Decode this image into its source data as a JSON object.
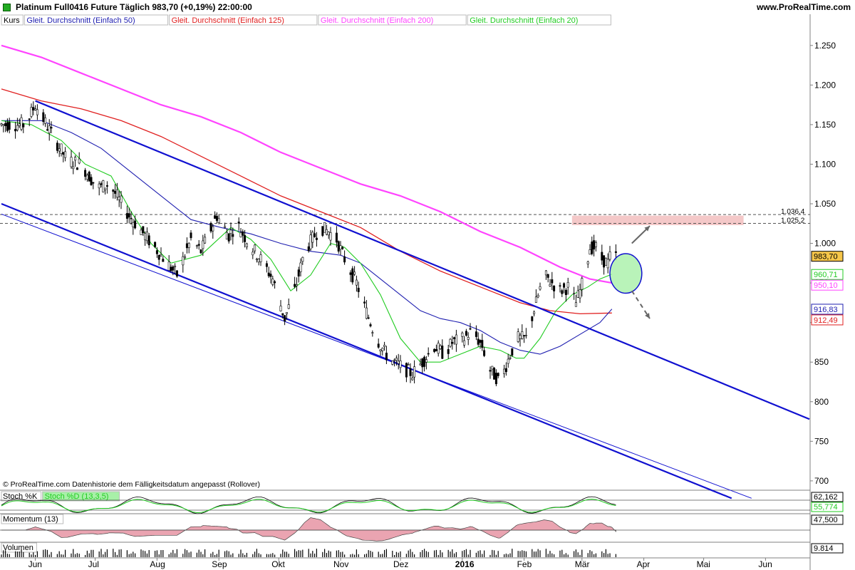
{
  "header": {
    "title": "Platinum Full0416 Future   Täglich   983,70  (+0,19%)   22:00:00",
    "brand": "www.ProRealTime.com"
  },
  "legend": [
    {
      "label": "Kurs",
      "color": "#000000",
      "bg": "#ffffff"
    },
    {
      "label": "Gleit. Durchschnitt (Einfach 50)",
      "color": "#1f1fb0",
      "bg": "#ffffff"
    },
    {
      "label": "Gleit. Durchschnitt (Einfach 125)",
      "color": "#e02020",
      "bg": "#ffffff"
    },
    {
      "label": "Gleit. Durchschnitt (Einfach 200)",
      "color": "#ff44ff",
      "bg": "#ffffff"
    },
    {
      "label": "Gleit. Durchschnitt (Einfach 20)",
      "color": "#22cc22",
      "bg": "#ffffff"
    }
  ],
  "footnote": "© ProRealTime.com  Datenhistorie dem Fälligkeitsdatum angepasst (Rollover)",
  "colors": {
    "ma50": "#1f1fb0",
    "ma125": "#e02020",
    "ma200": "#ff44ff",
    "ma20": "#22cc22",
    "trend": "#1010d0",
    "zone": "#f4c8c8",
    "ellipse_fill": "#a8f0a8",
    "arrow": "#666666"
  },
  "chart_data": {
    "type": "candlestick",
    "ylim": [
      690,
      1275
    ],
    "yticks": [
      700,
      750,
      800,
      850,
      900,
      950,
      1000,
      1050,
      1100,
      1150,
      1200,
      1250
    ],
    "ytick_labels": [
      "700",
      "750",
      "800",
      "850",
      "900",
      "950",
      "1.000",
      "1.050",
      "1.100",
      "1.150",
      "1.200",
      "1.250"
    ],
    "x_months": [
      {
        "label": "Jun",
        "day": 17
      },
      {
        "label": "Jul",
        "day": 47
      },
      {
        "label": "Aug",
        "day": 78
      },
      {
        "label": "Sep",
        "day": 109
      },
      {
        "label": "Okt",
        "day": 139
      },
      {
        "label": "Nov",
        "day": 170
      },
      {
        "label": "Dez",
        "day": 200
      },
      {
        "label": "2016",
        "day": 231,
        "bold": true
      },
      {
        "label": "Feb",
        "day": 262
      },
      {
        "label": "Mär",
        "day": 291
      },
      {
        "label": "Apr",
        "day": 322
      },
      {
        "label": "Mai",
        "day": 352
      },
      {
        "label": "Jun",
        "day": 383
      }
    ],
    "days_visible": [
      0,
      405
    ],
    "last_day": 308,
    "price_path": [
      [
        0,
        1150
      ],
      [
        12,
        1150
      ],
      [
        17,
        1175
      ],
      [
        27,
        1130
      ],
      [
        33,
        1105
      ],
      [
        40,
        1100
      ],
      [
        48,
        1070
      ],
      [
        54,
        1075
      ],
      [
        64,
        1035
      ],
      [
        72,
        1010
      ],
      [
        80,
        985
      ],
      [
        88,
        960
      ],
      [
        95,
        1005
      ],
      [
        100,
        990
      ],
      [
        108,
        1035
      ],
      [
        114,
        1010
      ],
      [
        118,
        1025
      ],
      [
        124,
        1000
      ],
      [
        130,
        980
      ],
      [
        136,
        955
      ],
      [
        142,
        905
      ],
      [
        147,
        940
      ],
      [
        152,
        990
      ],
      [
        157,
        1010
      ],
      [
        160,
        1020
      ],
      [
        164,
        1015
      ],
      [
        168,
        1005
      ],
      [
        172,
        980
      ],
      [
        178,
        950
      ],
      [
        182,
        920
      ],
      [
        188,
        880
      ],
      [
        194,
        855
      ],
      [
        200,
        845
      ],
      [
        206,
        835
      ],
      [
        211,
        850
      ],
      [
        217,
        870
      ],
      [
        222,
        860
      ],
      [
        226,
        875
      ],
      [
        232,
        880
      ],
      [
        236,
        890
      ],
      [
        241,
        870
      ],
      [
        245,
        840
      ],
      [
        250,
        825
      ],
      [
        255,
        860
      ],
      [
        259,
        880
      ],
      [
        263,
        880
      ],
      [
        268,
        925
      ],
      [
        272,
        960
      ],
      [
        276,
        950
      ],
      [
        280,
        940
      ],
      [
        284,
        945
      ],
      [
        288,
        925
      ],
      [
        292,
        955
      ],
      [
        295,
        995
      ],
      [
        298,
        995
      ],
      [
        301,
        980
      ],
      [
        304,
        975
      ],
      [
        306,
        990
      ],
      [
        308,
        984
      ]
    ],
    "ma20": [
      [
        0,
        1155
      ],
      [
        15,
        1150
      ],
      [
        30,
        1130
      ],
      [
        42,
        1100
      ],
      [
        55,
        1085
      ],
      [
        65,
        1040
      ],
      [
        75,
        1000
      ],
      [
        85,
        975
      ],
      [
        100,
        985
      ],
      [
        115,
        1020
      ],
      [
        125,
        1005
      ],
      [
        135,
        980
      ],
      [
        145,
        940
      ],
      [
        155,
        960
      ],
      [
        165,
        1000
      ],
      [
        172,
        995
      ],
      [
        180,
        975
      ],
      [
        190,
        935
      ],
      [
        200,
        880
      ],
      [
        210,
        850
      ],
      [
        220,
        850
      ],
      [
        230,
        860
      ],
      [
        240,
        870
      ],
      [
        250,
        865
      ],
      [
        258,
        855
      ],
      [
        262,
        855
      ],
      [
        270,
        880
      ],
      [
        278,
        915
      ],
      [
        286,
        935
      ],
      [
        294,
        945
      ],
      [
        300,
        955
      ],
      [
        306,
        961
      ]
    ],
    "ma50": [
      [
        0,
        1155
      ],
      [
        20,
        1155
      ],
      [
        35,
        1140
      ],
      [
        50,
        1120
      ],
      [
        65,
        1090
      ],
      [
        80,
        1060
      ],
      [
        95,
        1030
      ],
      [
        110,
        1020
      ],
      [
        125,
        1012
      ],
      [
        140,
        1000
      ],
      [
        155,
        990
      ],
      [
        170,
        985
      ],
      [
        180,
        975
      ],
      [
        190,
        955
      ],
      [
        200,
        935
      ],
      [
        210,
        915
      ],
      [
        220,
        905
      ],
      [
        230,
        900
      ],
      [
        240,
        890
      ],
      [
        250,
        875
      ],
      [
        260,
        865
      ],
      [
        270,
        860
      ],
      [
        280,
        870
      ],
      [
        290,
        885
      ],
      [
        300,
        900
      ],
      [
        306,
        917
      ]
    ],
    "ma125": [
      [
        0,
        1195
      ],
      [
        20,
        1180
      ],
      [
        40,
        1170
      ],
      [
        60,
        1155
      ],
      [
        80,
        1135
      ],
      [
        100,
        1110
      ],
      [
        120,
        1085
      ],
      [
        140,
        1060
      ],
      [
        160,
        1040
      ],
      [
        180,
        1020
      ],
      [
        200,
        990
      ],
      [
        220,
        965
      ],
      [
        240,
        945
      ],
      [
        260,
        925
      ],
      [
        275,
        915
      ],
      [
        290,
        911
      ],
      [
        306,
        912
      ]
    ],
    "ma200": [
      [
        0,
        1250
      ],
      [
        20,
        1235
      ],
      [
        40,
        1215
      ],
      [
        60,
        1195
      ],
      [
        80,
        1175
      ],
      [
        100,
        1160
      ],
      [
        120,
        1140
      ],
      [
        140,
        1115
      ],
      [
        160,
        1095
      ],
      [
        180,
        1075
      ],
      [
        200,
        1060
      ],
      [
        220,
        1040
      ],
      [
        240,
        1015
      ],
      [
        260,
        995
      ],
      [
        280,
        970
      ],
      [
        295,
        955
      ],
      [
        306,
        950
      ]
    ],
    "trendlines": [
      {
        "from": [
          17,
          1180
        ],
        "to": [
          405,
          778
        ],
        "width": 2.2
      },
      {
        "from": [
          0,
          1050
        ],
        "to": [
          366,
          678
        ],
        "width": 2.2
      },
      {
        "from": [
          0,
          1037
        ],
        "to": [
          376,
          678
        ],
        "width": 1
      }
    ],
    "hlines": [
      {
        "value": 1036.4,
        "label": "1.036,4"
      },
      {
        "value": 1025.2,
        "label": "1.025,2"
      }
    ],
    "resistance_zone": [
      1023,
      1035
    ],
    "resistance_zone_days": [
      286,
      372
    ],
    "ellipse_center": [
      313,
      962
    ],
    "ellipse_radius": [
      8,
      25
    ],
    "last_labels": [
      {
        "text": "983,70",
        "value": 983.7,
        "bg": "#f6c64a",
        "fg": "#000000"
      },
      {
        "text": "960,71",
        "value": 960.71,
        "bg": "#ffffff",
        "fg": "#22cc22"
      },
      {
        "text": "950,10",
        "value": 950.1,
        "bg": "#ffffff",
        "fg": "#ff44ff"
      },
      {
        "text": "916,83",
        "value": 916.83,
        "bg": "#ffffff",
        "fg": "#1f1fb0"
      },
      {
        "text": "912,49",
        "value": 912.49,
        "bg": "#ffffff",
        "fg": "#e02020"
      }
    ],
    "arrow_up": {
      "from": [
        316,
        1000
      ],
      "to": [
        325,
        1022
      ]
    },
    "arrow_down": {
      "from": [
        316,
        940
      ],
      "to": [
        325,
        905
      ]
    },
    "sub_panels": [
      {
        "label": "Stoch %K",
        "label2": "Stoch %D (13,3,5)",
        "values": [
          "62,162",
          "55,774"
        ],
        "value_colors": [
          "#000000",
          "#22cc22"
        ]
      },
      {
        "label": "Momentum (13)",
        "values": [
          "47,500"
        ],
        "value_colors": [
          "#000000"
        ]
      },
      {
        "label": "Volumen",
        "values": [
          "9.814"
        ],
        "value_colors": [
          "#000000"
        ]
      }
    ]
  }
}
